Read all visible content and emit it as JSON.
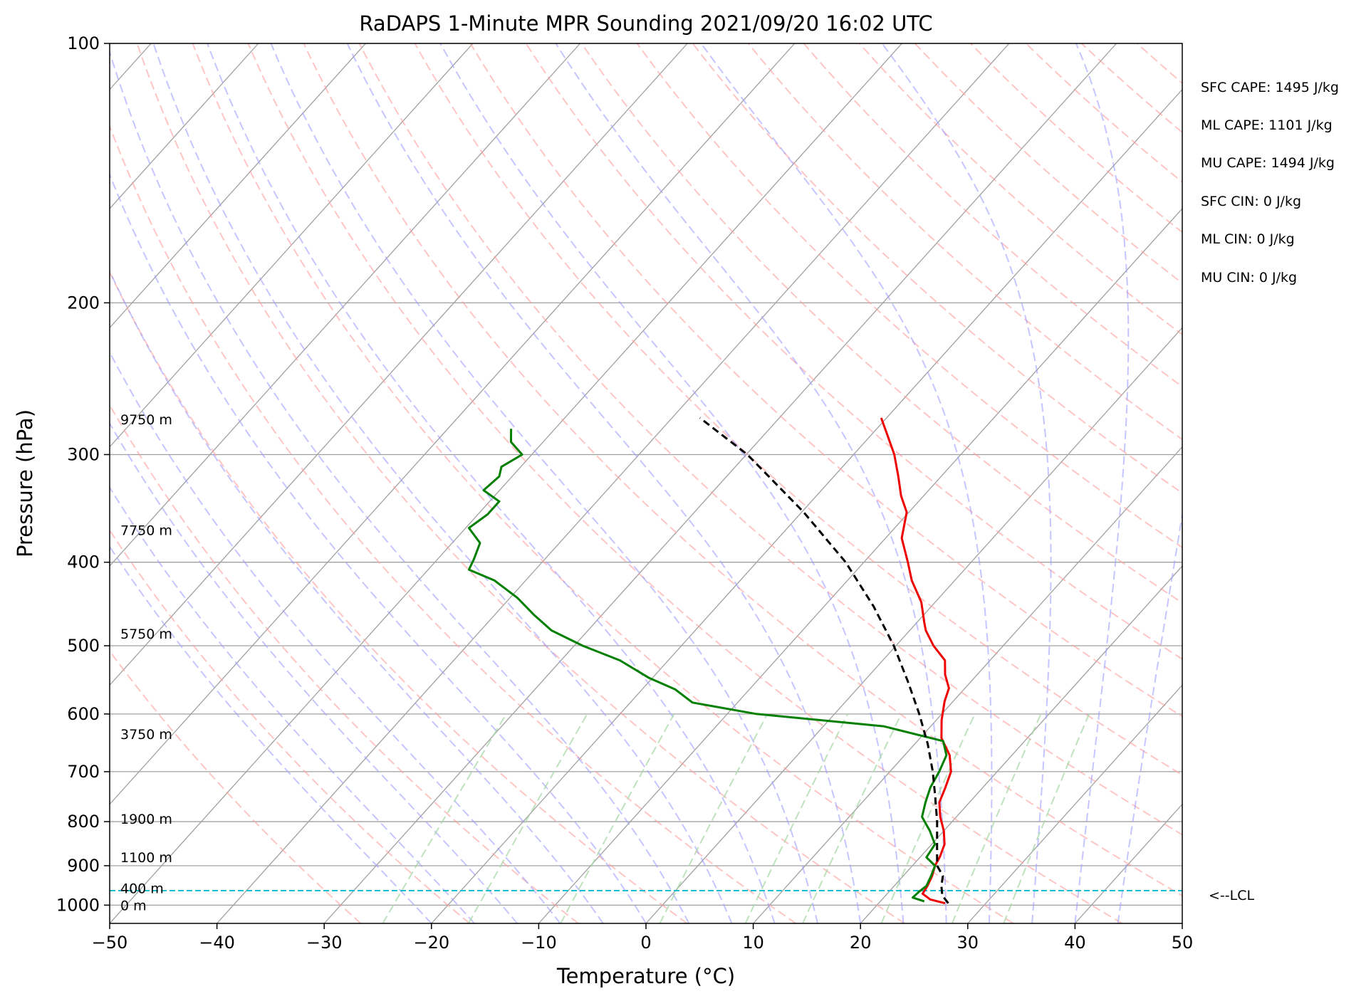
{
  "chart_data": {
    "type": "line",
    "title": "RaDAPS 1-Minute MPR Sounding 2021/09/20 16:02 UTC",
    "xlabel": "Temperature (°C)",
    "ylabel": "Pressure (hPa)",
    "xlim": [
      -50,
      50
    ],
    "ylim": [
      1050,
      100
    ],
    "y_scale": "log",
    "skew": true,
    "x_ticks": [
      "−50",
      "−40",
      "−30",
      "−20",
      "−10",
      "0",
      "10",
      "20",
      "30",
      "40",
      "50"
    ],
    "y_ticks": [
      "100",
      "200",
      "300",
      "400",
      "500",
      "600",
      "700",
      "800",
      "900",
      "1000"
    ],
    "grid": true,
    "background_lines": {
      "isotherms_color": "#a0a0a0",
      "dry_adiabats_color": "#ff9e9e",
      "moist_adiabats_color": "#9e9eff",
      "mixing_ratio_color": "#a8d8a8",
      "lcl_color": "#17becf"
    },
    "series": [
      {
        "color": "#ee0000",
        "points": [
          [
            26.2,
            995
          ],
          [
            24.5,
            985
          ],
          [
            23.3,
            970
          ],
          [
            23.1,
            950
          ],
          [
            22.7,
            925
          ],
          [
            22.1,
            900
          ],
          [
            21.8,
            878
          ],
          [
            21.2,
            850
          ],
          [
            20.0,
            820
          ],
          [
            18.5,
            790
          ],
          [
            17.2,
            760
          ],
          [
            16.5,
            730
          ],
          [
            15.7,
            700
          ],
          [
            14.2,
            670
          ],
          [
            12.0,
            640
          ],
          [
            10.5,
            610
          ],
          [
            9.2,
            580
          ],
          [
            8.5,
            560
          ],
          [
            7.0,
            540
          ],
          [
            5.8,
            520
          ],
          [
            3.5,
            500
          ],
          [
            1.5,
            480
          ],
          [
            0.7,
            470
          ],
          [
            -1.3,
            445
          ],
          [
            -4.0,
            420
          ],
          [
            -5.9,
            400
          ],
          [
            -8.5,
            375
          ],
          [
            -10.2,
            350
          ],
          [
            -12.1,
            335
          ],
          [
            -14.0,
            318
          ],
          [
            -16.2,
            300
          ],
          [
            -18.6,
            284
          ],
          [
            -20.5,
            272
          ]
        ]
      },
      {
        "color": "#007f00",
        "points": [
          [
            24.1,
            990
          ],
          [
            22.7,
            980
          ],
          [
            22.8,
            965
          ],
          [
            23.0,
            950
          ],
          [
            22.6,
            925
          ],
          [
            22.1,
            900
          ],
          [
            20.6,
            880
          ],
          [
            20.3,
            850
          ],
          [
            18.7,
            820
          ],
          [
            16.8,
            790
          ],
          [
            15.9,
            760
          ],
          [
            15.1,
            730
          ],
          [
            14.6,
            700
          ],
          [
            13.9,
            670
          ],
          [
            12.4,
            645
          ],
          [
            5.6,
            620
          ],
          [
            -7.3,
            600
          ],
          [
            -14.2,
            582
          ],
          [
            -16.9,
            562
          ],
          [
            -20.3,
            545
          ],
          [
            -24.5,
            520
          ],
          [
            -29.2,
            500
          ],
          [
            -33.4,
            480
          ],
          [
            -36.4,
            460
          ],
          [
            -39.3,
            440
          ],
          [
            -42.9,
            420
          ],
          [
            -46.2,
            408
          ],
          [
            -46.6,
            397
          ],
          [
            -47.4,
            380
          ],
          [
            -49.7,
            365
          ],
          [
            -49.1,
            352
          ],
          [
            -49.1,
            340
          ],
          [
            -51.5,
            330
          ],
          [
            -51.2,
            318
          ],
          [
            -51.8,
            310
          ],
          [
            -50.9,
            300
          ],
          [
            -53.0,
            290
          ],
          [
            -54.1,
            280
          ]
        ]
      },
      {
        "color": "#000000",
        "dashed": true,
        "points": [
          [
            26.5,
            995
          ],
          [
            25.3,
            975
          ],
          [
            24.4,
            950
          ],
          [
            23.7,
            925
          ],
          [
            22.3,
            900
          ],
          [
            20.5,
            850
          ],
          [
            18.6,
            800
          ],
          [
            16.4,
            750
          ],
          [
            14.0,
            700
          ],
          [
            11.2,
            650
          ],
          [
            7.9,
            600
          ],
          [
            4.1,
            550
          ],
          [
            -0.2,
            500
          ],
          [
            -5.4,
            450
          ],
          [
            -11.7,
            400
          ],
          [
            -19.8,
            350
          ],
          [
            -29.9,
            300
          ],
          [
            -37.4,
            272
          ]
        ]
      }
    ],
    "lcl_pressure_hpa": 962,
    "lcl_label": "<--LCL",
    "height_labels": [
      {
        "label": "0 m",
        "p_hpa": 1000
      },
      {
        "label": "400 m",
        "p_hpa": 956
      },
      {
        "label": "1100 m",
        "p_hpa": 880
      },
      {
        "label": "1900 m",
        "p_hpa": 794
      },
      {
        "label": "3750 m",
        "p_hpa": 633
      },
      {
        "label": "5750 m",
        "p_hpa": 484
      },
      {
        "label": "7750 m",
        "p_hpa": 367
      },
      {
        "label": "9750 m",
        "p_hpa": 273
      }
    ],
    "annotations": [
      "SFC CAPE: 1495 J/kg",
      "ML CAPE: 1101 J/kg",
      "MU CAPE: 1494 J/kg",
      "SFC CIN: 0 J/kg",
      "ML CIN: 0 J/kg",
      "MU CIN: 0 J/kg"
    ]
  }
}
